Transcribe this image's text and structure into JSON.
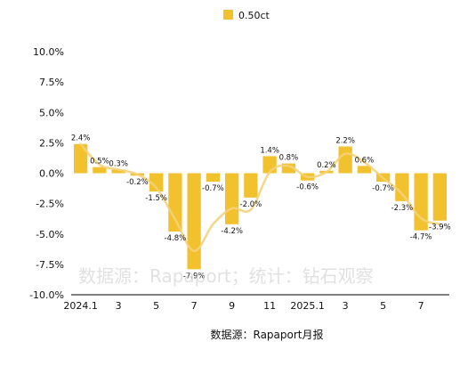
{
  "chart_data": {
    "type": "bar",
    "series": [
      {
        "name": "0.50ct",
        "color": "#F2C12E",
        "values": [
          2.4,
          0.5,
          0.3,
          -0.2,
          -1.5,
          -4.8,
          -7.9,
          -0.7,
          -4.2,
          -2.0,
          1.4,
          0.8,
          -0.6,
          0.2,
          2.2,
          0.6,
          -0.7,
          -2.3,
          -4.7,
          -3.9
        ],
        "data_labels": [
          "2.4%",
          "0.5%",
          "0.3%",
          "-0.2%",
          "-1.5%",
          "-4.8%",
          "-7.9%",
          "-0.7%",
          "-4.2%",
          "-2.0%",
          "1.4%",
          "0.8%",
          "-0.6%",
          "0.2%",
          "2.2%",
          "0.6%",
          "-0.7%",
          "-2.3%",
          "-4.7%",
          "-3.9%"
        ]
      }
    ],
    "trend_line": {
      "color": "#F5D27A",
      "values": [
        2.4,
        0.7,
        0.3,
        -0.1,
        -1.2,
        -3.8,
        -6.4,
        -4.2,
        -2.9,
        -3.0,
        0.1,
        0.6,
        -0.3,
        0.1,
        1.6,
        0.9,
        -0.4,
        -1.7,
        -3.7,
        -4.2
      ]
    },
    "x_tick_labels": [
      "2024.1",
      "3",
      "5",
      "7",
      "9",
      "11",
      "2025.1",
      "3",
      "5",
      "7"
    ],
    "x_tick_indices": [
      0,
      2,
      4,
      6,
      8,
      10,
      12,
      14,
      16,
      18
    ],
    "y_ticks": [
      10.0,
      7.5,
      5.0,
      2.5,
      0.0,
      -2.5,
      -5.0,
      -7.5,
      -10.0
    ],
    "y_tick_labels": [
      "10.0%",
      "7.5%",
      "5.0%",
      "2.5%",
      "0.0%",
      "-2.5%",
      "-5.0%",
      "-7.5%",
      "-10.0%"
    ],
    "ylim": [
      -10,
      10
    ],
    "grid": false,
    "legend_position": "top-center",
    "title": "",
    "xlabel": "",
    "ylabel": "",
    "caption": "数据源：Rapaport月报",
    "watermark": "数据源：Rapaport；统计：钻石观察"
  }
}
